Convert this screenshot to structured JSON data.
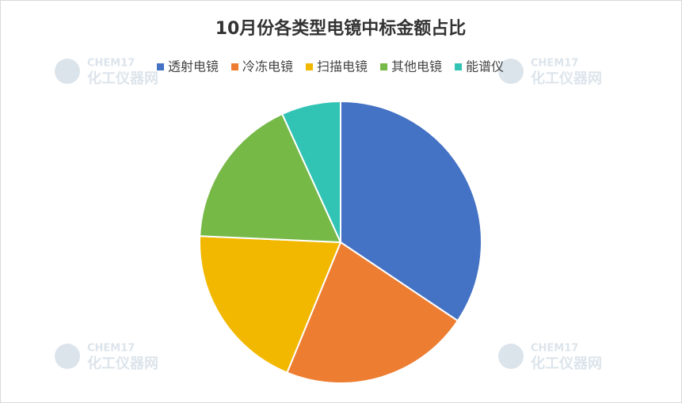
{
  "chart_data": {
    "type": "pie",
    "title": "10月份各类型电镜中标金额占比",
    "categories": [
      "透射电镜",
      "冷冻电镜",
      "扫描电镜",
      "其他电镜",
      "能谱仪"
    ],
    "values": [
      34.4,
      21.8,
      19.5,
      17.5,
      6.8
    ],
    "colors": [
      "#4472c4",
      "#ed7d31",
      "#f2b800",
      "#76b947",
      "#31c3b4"
    ],
    "legend": "top"
  },
  "watermark": {
    "brand": "CHEM17",
    "name": "化工仪器网"
  }
}
